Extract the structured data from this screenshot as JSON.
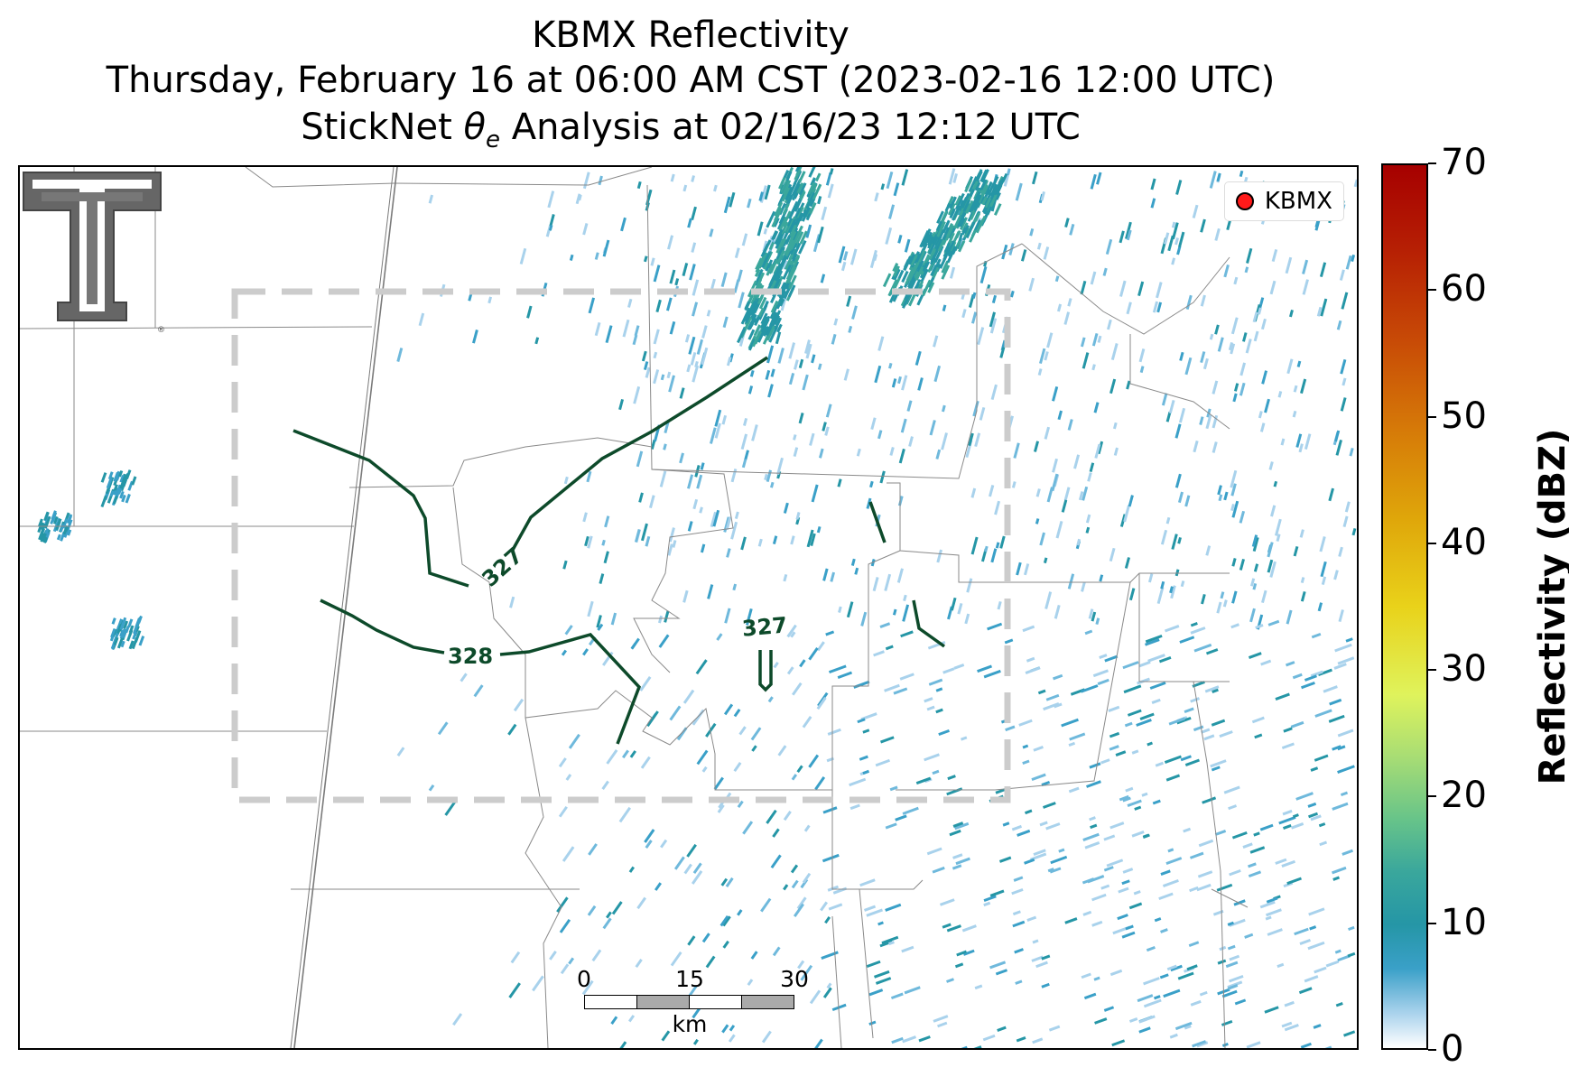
{
  "title": {
    "line1": "KBMX Reflectivity",
    "line2": "Thursday, February 16 at 06:00 AM CST (2023-02-16 12:00 UTC)",
    "line3_pre": "StickNet ",
    "line3_theta": "θ",
    "line3_sub": "e",
    "line3_post": " Analysis at 02/16/23 12:12 UTC"
  },
  "legend": {
    "label": "KBMX",
    "marker_color": "#ff1a1a"
  },
  "contours": {
    "color": "#0d4a2a",
    "labels": [
      "327",
      "328",
      "327"
    ]
  },
  "scale_bar": {
    "ticks": [
      "0",
      "15",
      "30"
    ],
    "unit": "km"
  },
  "colorbar": {
    "label": "Reflectivity (dBZ)",
    "min": 0,
    "max": 70,
    "ticks": [
      "0",
      "10",
      "20",
      "30",
      "40",
      "50",
      "60",
      "70"
    ]
  },
  "colors": {
    "analysis_box": "#cccccc",
    "county_lines": "#8a8a8a",
    "echo_light": "#a9d2ec",
    "echo_mid": "#3aa0c8",
    "echo_dark": "#2596a6"
  }
}
